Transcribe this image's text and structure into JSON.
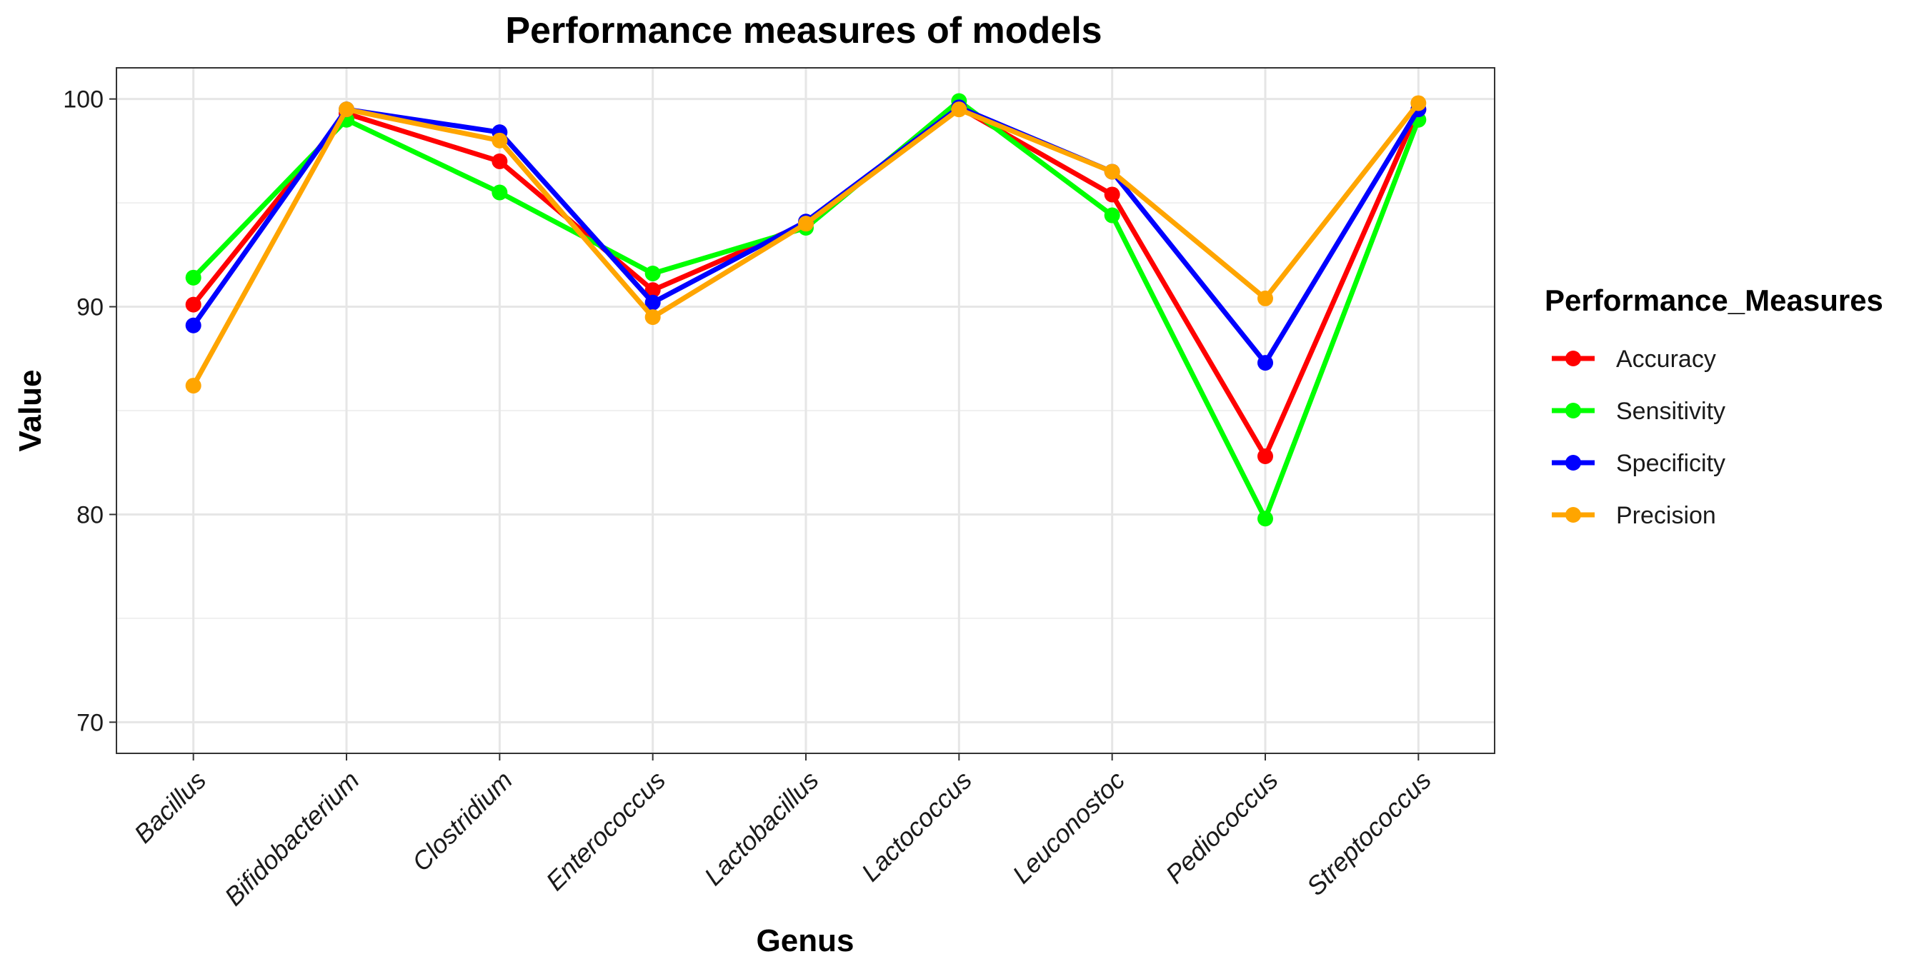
{
  "chart_data": {
    "type": "line",
    "title": "Performance measures of models",
    "xlabel": "Genus",
    "ylabel": "Value",
    "categories": [
      "Bacillus",
      "Bifidobacterium",
      "Clostridium",
      "Enterococcus",
      "Lactobacillus",
      "Lactococcus",
      "Leuconostoc",
      "Pediococcus",
      "Streptococcus"
    ],
    "ylim": [
      68.5,
      101.5
    ],
    "yticks": [
      70,
      80,
      90,
      100
    ],
    "grid": true,
    "legend_position": "right",
    "legend_title": "Performance_Measures",
    "series": [
      {
        "name": "Accuracy",
        "color": "#ff0000",
        "values": [
          90.1,
          99.3,
          97.0,
          90.8,
          94.0,
          99.6,
          95.4,
          82.8,
          99.5
        ]
      },
      {
        "name": "Sensitivity",
        "color": "#00ff00",
        "values": [
          91.4,
          99.0,
          95.5,
          91.6,
          93.8,
          99.9,
          94.4,
          79.8,
          99.0
        ]
      },
      {
        "name": "Specificity",
        "color": "#0000ff",
        "values": [
          89.1,
          99.5,
          98.4,
          90.2,
          94.1,
          99.6,
          96.5,
          87.3,
          99.5
        ]
      },
      {
        "name": "Precision",
        "color": "#ffa500",
        "values": [
          86.2,
          99.5,
          98.0,
          89.5,
          94.0,
          99.5,
          96.5,
          90.4,
          99.8
        ]
      }
    ]
  }
}
